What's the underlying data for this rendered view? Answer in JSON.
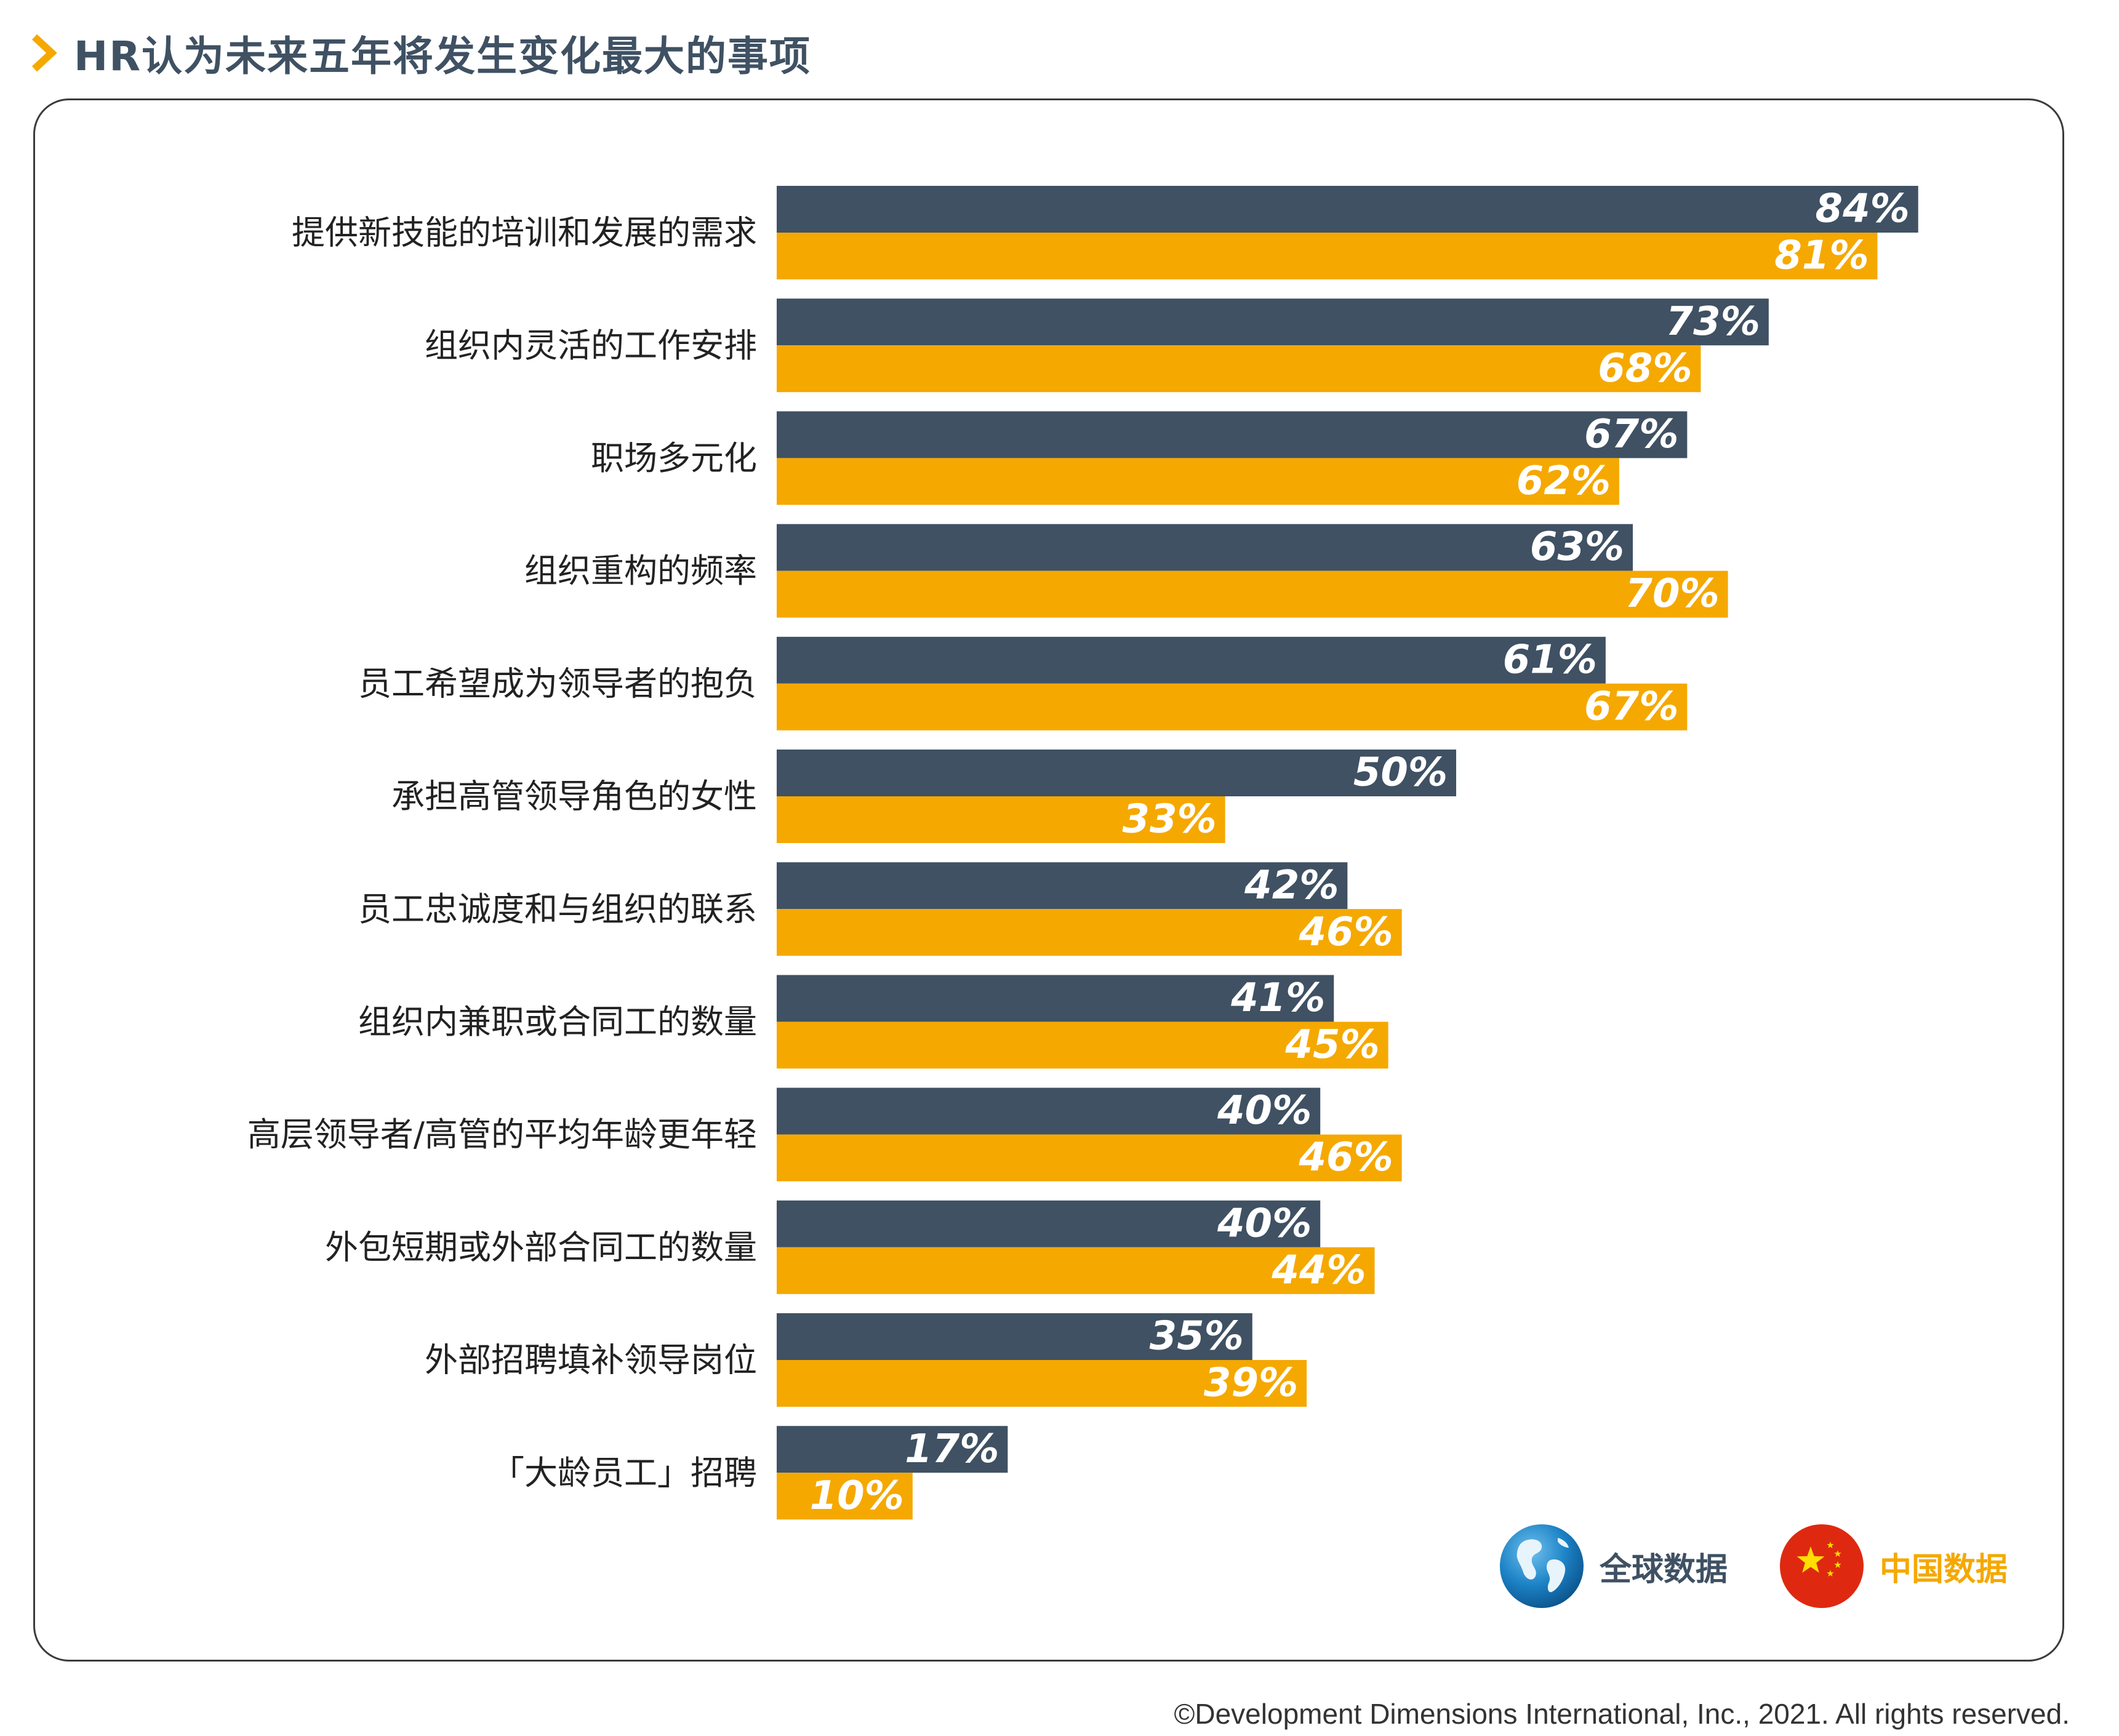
{
  "header": {
    "title": "HR认为未来五年将发生变化最大的事项"
  },
  "colors": {
    "global": "#3f5163",
    "china": "#f5a800",
    "title": "#3f5163",
    "chevron": "#f5a800"
  },
  "chart_data": {
    "type": "bar",
    "orientation": "horizontal",
    "title": "HR认为未来五年将发生变化最大的事项",
    "categories": [
      "提供新技能的培训和发展的需求",
      "组织内灵活的工作安排",
      "职场多元化",
      "组织重构的频率",
      "员工希望成为领导者的抱负",
      "承担高管领导角色的女性",
      "员工忠诚度和与组织的联系",
      "组织内兼职或合同工的数量",
      "高层领导者/高管的平均年龄更年轻",
      "外包短期或外部合同工的数量",
      "外部招聘填补领导岗位",
      "「大龄员工」招聘"
    ],
    "series": [
      {
        "name": "全球数据",
        "values": [
          84,
          73,
          67,
          63,
          61,
          50,
          42,
          41,
          40,
          40,
          35,
          17
        ]
      },
      {
        "name": "中国数据",
        "values": [
          81,
          68,
          62,
          70,
          67,
          33,
          46,
          45,
          46,
          44,
          39,
          10
        ]
      }
    ],
    "value_suffix": "%",
    "xlim": [
      0,
      100
    ],
    "grid": false,
    "legend": "bottom-right"
  },
  "legend": {
    "global_label": "全球数据",
    "china_label": "中国数据"
  },
  "footer": {
    "copyright": "©Development Dimensions International, Inc., 2021. All rights reserved."
  }
}
